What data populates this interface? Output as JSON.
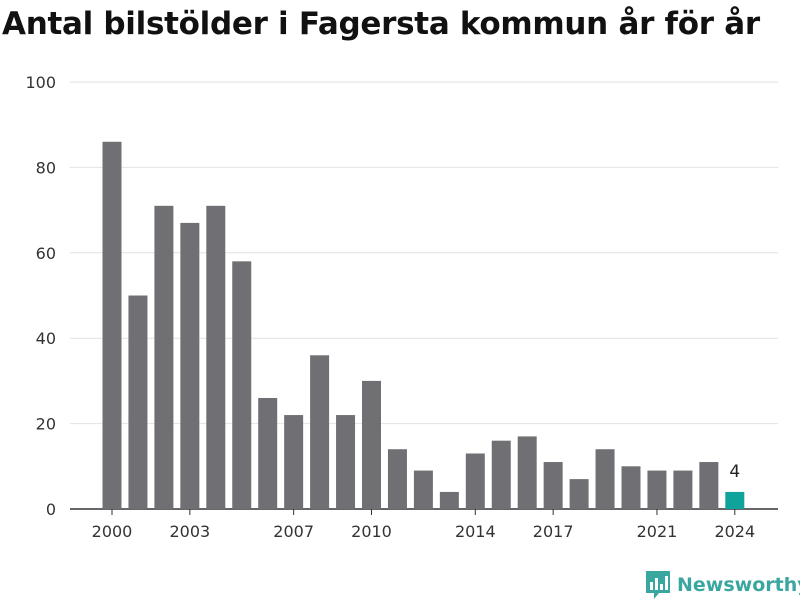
{
  "chart_data": {
    "type": "bar",
    "title": "Antal bilstölder i Fagersta kommun år för år",
    "x": [
      2000,
      2001,
      2002,
      2003,
      2004,
      2005,
      2006,
      2007,
      2008,
      2009,
      2010,
      2011,
      2012,
      2013,
      2014,
      2015,
      2016,
      2017,
      2018,
      2019,
      2020,
      2021,
      2022,
      2023,
      2024
    ],
    "values": [
      86,
      50,
      71,
      67,
      71,
      58,
      26,
      22,
      36,
      22,
      30,
      14,
      9,
      4,
      13,
      16,
      17,
      11,
      7,
      14,
      10,
      9,
      9,
      11,
      4
    ],
    "x_tick_labels": [
      "2000",
      "2003",
      "2007",
      "2010",
      "2014",
      "2017",
      "2021",
      "2024"
    ],
    "y_tick_labels": [
      "0",
      "20",
      "40",
      "60",
      "80",
      "100"
    ],
    "ylim": [
      0,
      100
    ],
    "grid": "horizontal",
    "highlight": {
      "index": 24,
      "label": "4",
      "color": "#0fa39c"
    },
    "bar_color": "#707074",
    "xlabel": "",
    "ylabel": ""
  },
  "brand": {
    "name": "Newsworthy",
    "color": "#3aa6a0"
  }
}
